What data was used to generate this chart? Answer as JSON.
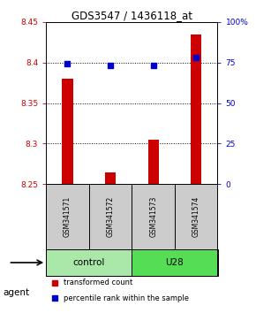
{
  "title": "GDS3547 / 1436118_at",
  "samples": [
    "GSM341571",
    "GSM341572",
    "GSM341573",
    "GSM341574"
  ],
  "red_values": [
    8.38,
    8.265,
    8.305,
    8.435
  ],
  "blue_values": [
    74,
    73,
    73,
    78
  ],
  "y_min": 8.25,
  "y_max": 8.45,
  "y_ticks": [
    8.25,
    8.3,
    8.35,
    8.4,
    8.45
  ],
  "y_tick_labels": [
    "8.25",
    "8.3",
    "8.35",
    "8.4",
    "8.45"
  ],
  "y2_ticks": [
    0,
    25,
    50,
    75,
    100
  ],
  "y2_tick_labels": [
    "0",
    "25",
    "50",
    "75",
    "100%"
  ],
  "dotted_lines": [
    8.3,
    8.35,
    8.4
  ],
  "groups": [
    {
      "label": "control",
      "samples": [
        0,
        1
      ],
      "color": "#aae8aa"
    },
    {
      "label": "U28",
      "samples": [
        2,
        3
      ],
      "color": "#55dd55"
    }
  ],
  "red_color": "#cc0000",
  "blue_color": "#0000cc",
  "bar_width": 0.25,
  "background_color": "#ffffff",
  "sample_box_color": "#cccccc",
  "legend_red_label": "transformed count",
  "legend_blue_label": "percentile rank within the sample",
  "agent_label": "agent"
}
